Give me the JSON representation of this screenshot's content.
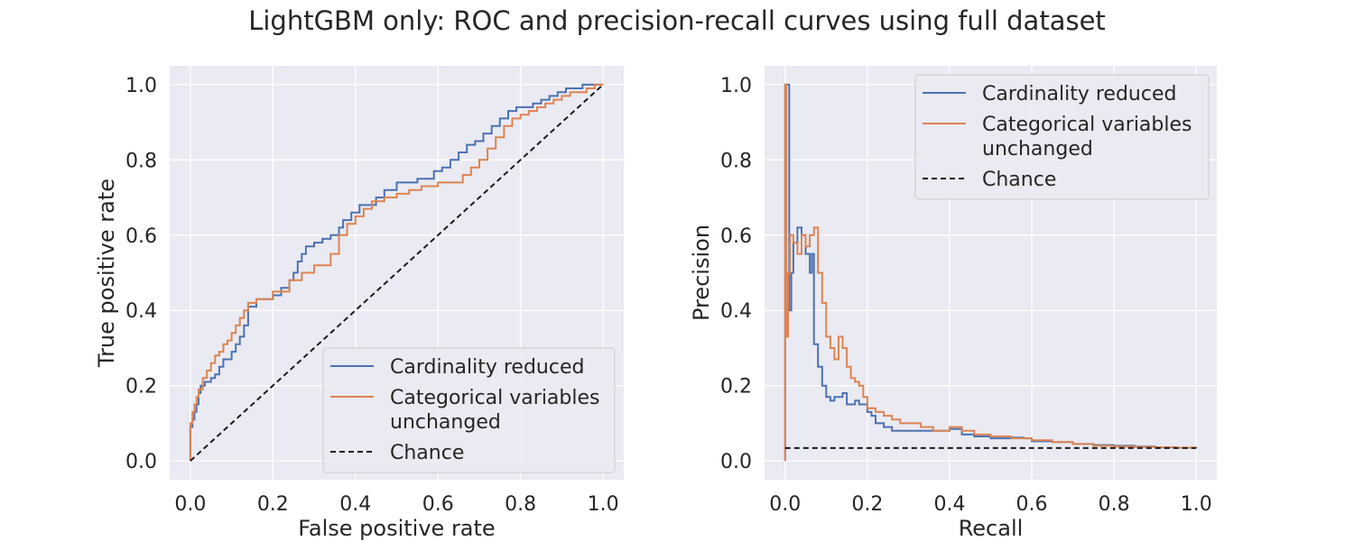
{
  "figure": {
    "title": "LightGBM only: ROC and precision-recall curves using full dataset"
  },
  "colors": {
    "panel_bg": "#eaeaf2",
    "grid": "#ffffff",
    "series_1": "#4c72b0",
    "series_2": "#dd8452",
    "chance": "#1a1a1a",
    "text": "#262626"
  },
  "chart_data": [
    {
      "type": "line",
      "title": "",
      "xlabel": "False positive rate",
      "ylabel": "True positive rate",
      "xlim": [
        -0.05,
        1.05
      ],
      "ylim": [
        -0.05,
        1.05
      ],
      "xticks": [
        0.0,
        0.2,
        0.4,
        0.6,
        0.8,
        1.0
      ],
      "yticks": [
        0.0,
        0.2,
        0.4,
        0.6,
        0.8,
        1.0
      ],
      "tick_labels_x": [
        "0.0",
        "0.2",
        "0.4",
        "0.6",
        "0.8",
        "1.0"
      ],
      "tick_labels_y": [
        "0.0",
        "0.2",
        "0.4",
        "0.6",
        "0.8",
        "1.0"
      ],
      "grid": true,
      "legend_position": "lower-right",
      "series": [
        {
          "name": "Cardinality reduced",
          "step": "post",
          "color": "#4c72b0",
          "x": [
            0.0,
            0.0,
            0.005,
            0.01,
            0.015,
            0.02,
            0.025,
            0.035,
            0.05,
            0.06,
            0.07,
            0.08,
            0.1,
            0.11,
            0.12,
            0.13,
            0.14,
            0.16,
            0.18,
            0.2,
            0.22,
            0.24,
            0.25,
            0.26,
            0.27,
            0.28,
            0.3,
            0.32,
            0.34,
            0.36,
            0.37,
            0.39,
            0.41,
            0.43,
            0.45,
            0.47,
            0.5,
            0.53,
            0.55,
            0.57,
            0.59,
            0.61,
            0.63,
            0.65,
            0.67,
            0.69,
            0.71,
            0.73,
            0.75,
            0.77,
            0.79,
            0.81,
            0.83,
            0.85,
            0.87,
            0.89,
            0.91,
            0.93,
            0.95,
            0.97,
            0.99,
            1.0
          ],
          "y": [
            0.0,
            0.09,
            0.11,
            0.13,
            0.15,
            0.18,
            0.2,
            0.21,
            0.22,
            0.23,
            0.25,
            0.27,
            0.29,
            0.31,
            0.33,
            0.36,
            0.41,
            0.43,
            0.43,
            0.44,
            0.46,
            0.48,
            0.5,
            0.53,
            0.55,
            0.57,
            0.58,
            0.59,
            0.6,
            0.62,
            0.64,
            0.66,
            0.68,
            0.68,
            0.7,
            0.72,
            0.74,
            0.74,
            0.75,
            0.75,
            0.77,
            0.78,
            0.8,
            0.82,
            0.84,
            0.85,
            0.87,
            0.89,
            0.91,
            0.93,
            0.94,
            0.94,
            0.95,
            0.96,
            0.97,
            0.98,
            0.99,
            0.99,
            1.0,
            1.0,
            1.0,
            1.0
          ]
        },
        {
          "name": "Categorical variables\nunchanged",
          "step": "post",
          "color": "#dd8452",
          "x": [
            0.0,
            0.0,
            0.005,
            0.01,
            0.015,
            0.02,
            0.03,
            0.04,
            0.05,
            0.06,
            0.07,
            0.08,
            0.09,
            0.1,
            0.11,
            0.12,
            0.13,
            0.14,
            0.16,
            0.2,
            0.24,
            0.27,
            0.3,
            0.34,
            0.36,
            0.38,
            0.4,
            0.42,
            0.44,
            0.47,
            0.5,
            0.53,
            0.56,
            0.6,
            0.64,
            0.66,
            0.68,
            0.7,
            0.72,
            0.74,
            0.76,
            0.78,
            0.8,
            0.82,
            0.84,
            0.86,
            0.88,
            0.9,
            0.92,
            0.94,
            0.96,
            0.98,
            1.0
          ],
          "y": [
            0.0,
            0.1,
            0.13,
            0.15,
            0.17,
            0.19,
            0.22,
            0.24,
            0.26,
            0.28,
            0.29,
            0.31,
            0.32,
            0.34,
            0.36,
            0.38,
            0.4,
            0.42,
            0.43,
            0.45,
            0.48,
            0.5,
            0.52,
            0.55,
            0.6,
            0.63,
            0.65,
            0.67,
            0.69,
            0.7,
            0.71,
            0.72,
            0.73,
            0.74,
            0.74,
            0.76,
            0.78,
            0.8,
            0.83,
            0.86,
            0.89,
            0.91,
            0.92,
            0.93,
            0.94,
            0.95,
            0.96,
            0.97,
            0.98,
            0.98,
            0.99,
            1.0,
            1.0
          ]
        },
        {
          "name": "Chance",
          "color": "#1a1a1a",
          "dashed": true,
          "x": [
            0.0,
            1.0
          ],
          "y": [
            0.0,
            1.0
          ]
        }
      ]
    },
    {
      "type": "line",
      "title": "",
      "xlabel": "Recall",
      "ylabel": "Precision",
      "xlim": [
        -0.05,
        1.05
      ],
      "ylim": [
        -0.05,
        1.05
      ],
      "xticks": [
        0.0,
        0.2,
        0.4,
        0.6,
        0.8,
        1.0
      ],
      "yticks": [
        0.0,
        0.2,
        0.4,
        0.6,
        0.8,
        1.0
      ],
      "tick_labels_x": [
        "0.0",
        "0.2",
        "0.4",
        "0.6",
        "0.8",
        "1.0"
      ],
      "tick_labels_y": [
        "0.0",
        "0.2",
        "0.4",
        "0.6",
        "0.8",
        "1.0"
      ],
      "grid": true,
      "legend_position": "upper-right",
      "series": [
        {
          "name": "Cardinality reduced",
          "step": "post",
          "color": "#4c72b0",
          "x": [
            0.0,
            0.0,
            0.01,
            0.015,
            0.02,
            0.03,
            0.04,
            0.05,
            0.06,
            0.065,
            0.07,
            0.075,
            0.08,
            0.09,
            0.1,
            0.11,
            0.12,
            0.13,
            0.14,
            0.15,
            0.16,
            0.17,
            0.18,
            0.19,
            0.2,
            0.21,
            0.22,
            0.24,
            0.26,
            0.28,
            0.3,
            0.33,
            0.36,
            0.4,
            0.43,
            0.46,
            0.5,
            0.55,
            0.58,
            0.6,
            0.65,
            0.7,
            0.75,
            0.8,
            0.85,
            0.9,
            0.95,
            1.0
          ],
          "y": [
            0.0,
            1.0,
            0.4,
            0.5,
            0.58,
            0.62,
            0.6,
            0.55,
            0.5,
            0.55,
            0.31,
            0.31,
            0.25,
            0.2,
            0.17,
            0.16,
            0.17,
            0.17,
            0.18,
            0.15,
            0.15,
            0.16,
            0.15,
            0.15,
            0.13,
            0.12,
            0.1,
            0.09,
            0.08,
            0.08,
            0.08,
            0.08,
            0.08,
            0.085,
            0.07,
            0.065,
            0.06,
            0.062,
            0.06,
            0.052,
            0.05,
            0.045,
            0.042,
            0.04,
            0.038,
            0.036,
            0.035,
            0.034
          ]
        },
        {
          "name": "Categorical variables\nunchanged",
          "step": "post",
          "color": "#dd8452",
          "x": [
            0.0,
            0.0,
            0.003,
            0.007,
            0.012,
            0.02,
            0.03,
            0.04,
            0.05,
            0.06,
            0.07,
            0.08,
            0.09,
            0.1,
            0.11,
            0.12,
            0.13,
            0.14,
            0.15,
            0.16,
            0.17,
            0.18,
            0.19,
            0.2,
            0.22,
            0.24,
            0.26,
            0.28,
            0.3,
            0.33,
            0.36,
            0.4,
            0.43,
            0.46,
            0.5,
            0.55,
            0.6,
            0.65,
            0.7,
            0.75,
            0.8,
            0.85,
            0.9,
            0.95,
            1.0
          ],
          "y": [
            0.0,
            1.0,
            0.33,
            0.5,
            0.6,
            0.58,
            0.55,
            0.6,
            0.57,
            0.6,
            0.62,
            0.5,
            0.42,
            0.33,
            0.3,
            0.27,
            0.33,
            0.3,
            0.25,
            0.22,
            0.21,
            0.2,
            0.17,
            0.14,
            0.13,
            0.12,
            0.11,
            0.1,
            0.1,
            0.09,
            0.08,
            0.09,
            0.08,
            0.07,
            0.065,
            0.06,
            0.055,
            0.05,
            0.045,
            0.04,
            0.038,
            0.037,
            0.036,
            0.035,
            0.034
          ]
        },
        {
          "name": "Chance",
          "color": "#1a1a1a",
          "dashed": true,
          "x": [
            0.0,
            1.0
          ],
          "y": [
            0.034,
            0.034
          ]
        }
      ]
    }
  ]
}
